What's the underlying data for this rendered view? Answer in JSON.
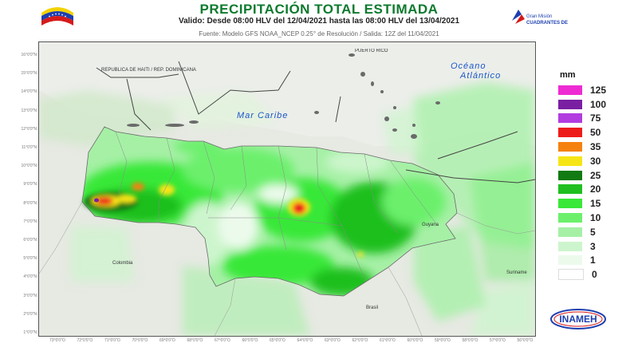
{
  "header": {
    "title": "PRECIPITACIÓN TOTAL ESTIMADA",
    "subtitle": "Valido: Desde 08:00 HLV del 12/04/2021 hasta las 08:00 HLV del 13/04/2021",
    "source": "Fuente: Modelo GFS NOAA_NCEP 0.25° de Resolución / Salida: 12Z del 11/04/2021",
    "logo_right_text": "Gran Misión Cuadrantes de Paz"
  },
  "map": {
    "sea_labels": {
      "caribe": "Mar Caribe",
      "oceano_1": "Océano",
      "oceano_2": "Atlántico"
    },
    "country_labels": {
      "colombia": "Colombia",
      "brasil": "Brasil",
      "guyana": "Guyana",
      "suriname": "Suriname",
      "rep_dominicana": "REPUBLICA DE HAITI / REP. DOMINICANA",
      "puerto_rico": "PUERTO RICO"
    },
    "x_ticks": [
      "73°0'0\"O",
      "72°0'0\"O",
      "71°0'0\"O",
      "70°0'0\"O",
      "69°0'0\"O",
      "68°0'0\"O",
      "67°0'0\"O",
      "66°0'0\"O",
      "65°0'0\"O",
      "64°0'0\"O",
      "63°0'0\"O",
      "62°0'0\"O",
      "61°0'0\"O",
      "60°0'0\"O",
      "59°0'0\"O",
      "58°0'0\"O",
      "57°0'0\"O",
      "56°0'0\"O"
    ],
    "y_ticks": [
      "16°0'0\"N",
      "15°0'0\"N",
      "14°0'0\"N",
      "13°0'0\"N",
      "12°0'0\"N",
      "11°0'0\"N",
      "10°0'0\"N",
      "9°0'0\"N",
      "8°0'0\"N",
      "7°0'0\"N",
      "6°0'0\"N",
      "5°0'0\"N",
      "4°0'0\"N",
      "3°0'0\"N",
      "2°0'0\"N",
      "1°0'0\"N"
    ]
  },
  "legend": {
    "unit": "mm",
    "items": [
      {
        "label": "125",
        "color": "#ee2bd3"
      },
      {
        "label": "100",
        "color": "#7a1fa2"
      },
      {
        "label": "75",
        "color": "#b23ce0"
      },
      {
        "label": "50",
        "color": "#ee1b1b"
      },
      {
        "label": "35",
        "color": "#f5820f"
      },
      {
        "label": "30",
        "color": "#f6e516"
      },
      {
        "label": "25",
        "color": "#127a12"
      },
      {
        "label": "20",
        "color": "#1fbf1f"
      },
      {
        "label": "15",
        "color": "#39e839"
      },
      {
        "label": "10",
        "color": "#6cf06c"
      },
      {
        "label": "5",
        "color": "#a6f0a6"
      },
      {
        "label": "3",
        "color": "#cdf5cd"
      },
      {
        "label": "1",
        "color": "#ecfaec"
      },
      {
        "label": "0",
        "color": "#ffffff"
      }
    ]
  },
  "footer": {
    "logo_text": "INAMEH"
  }
}
